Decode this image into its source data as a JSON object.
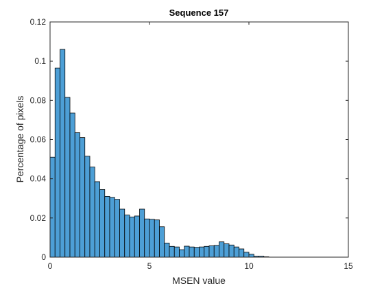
{
  "chart_data": {
    "type": "bar",
    "title": "Sequence 157",
    "xlabel": "MSEN value",
    "ylabel": "Percentage of pixels",
    "xlim": [
      0,
      15
    ],
    "ylim": [
      0,
      0.12
    ],
    "xticks": [
      0,
      5,
      10,
      15
    ],
    "xtick_labels": [
      "0",
      "5",
      "10",
      "15"
    ],
    "yticks": [
      0,
      0.02,
      0.04,
      0.06,
      0.08,
      0.1,
      0.12
    ],
    "ytick_labels": [
      "0",
      "0.02",
      "0.04",
      "0.06",
      "0.08",
      "0.1",
      "0.12"
    ],
    "grid": false,
    "bin_edges_start": 0,
    "bin_width": 0.25,
    "values": [
      0.051,
      0.0965,
      0.106,
      0.0815,
      0.0735,
      0.0635,
      0.061,
      0.0515,
      0.046,
      0.0385,
      0.0345,
      0.031,
      0.0305,
      0.0295,
      0.0245,
      0.0215,
      0.0205,
      0.021,
      0.0245,
      0.0195,
      0.0193,
      0.019,
      0.0155,
      0.0072,
      0.0055,
      0.0052,
      0.0038,
      0.0056,
      0.0052,
      0.005,
      0.0052,
      0.0055,
      0.0058,
      0.006,
      0.0078,
      0.0068,
      0.0062,
      0.0052,
      0.0042,
      0.0025,
      0.0015,
      0.0005,
      0.0005,
      0.0002
    ],
    "colors": {
      "bar_fill": "#4d9fd6",
      "bar_edge": "#000000",
      "axis": "#262626",
      "background": "#ffffff"
    }
  }
}
